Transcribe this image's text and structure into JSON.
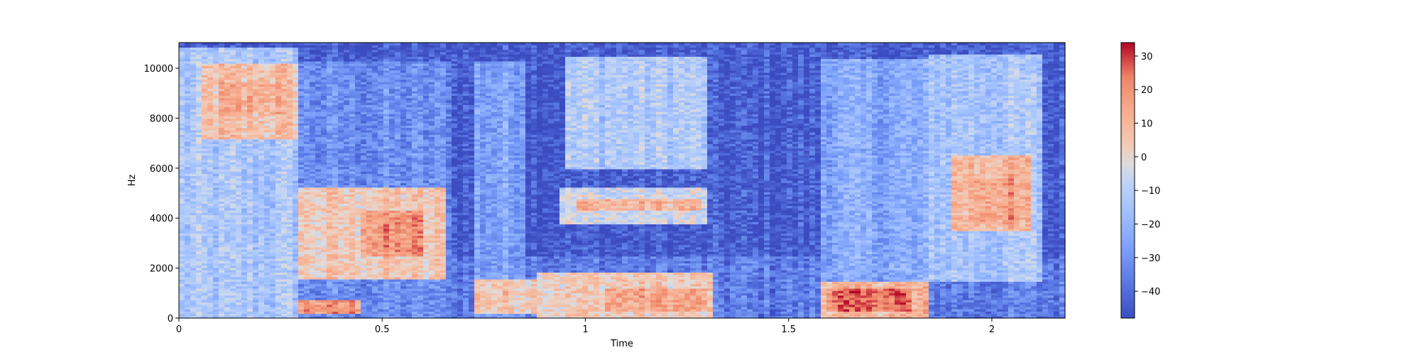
{
  "chart_data": {
    "type": "heatmap",
    "subtype": "spectrogram",
    "title": "",
    "xlabel": "Time",
    "ylabel": "Hz",
    "xlim": [
      0,
      2.18
    ],
    "ylim": [
      0,
      11025
    ],
    "x_ticks": [
      0,
      0.5,
      1,
      1.5,
      2
    ],
    "x_tick_labels": [
      "0",
      "0.5",
      "1",
      "1.5",
      "2"
    ],
    "y_ticks": [
      0,
      2000,
      4000,
      6000,
      8000,
      10000
    ],
    "y_tick_labels": [
      "0",
      "2000",
      "4000",
      "6000",
      "8000",
      "10000"
    ],
    "colormap": "coolwarm",
    "colorbar": {
      "vmin": -48,
      "vmax": 34,
      "ticks": [
        -40,
        -30,
        -20,
        -10,
        0,
        10,
        20,
        30
      ],
      "tick_labels": [
        "−40",
        "−30",
        "−20",
        "−10",
        "0",
        "10",
        "20",
        "30"
      ]
    },
    "background_level_db": -44,
    "regions": [
      {
        "x": [
          0.0,
          0.3
        ],
        "y": [
          0,
          10800
        ],
        "level_db": -14
      },
      {
        "x": [
          0.05,
          0.3
        ],
        "y": [
          7200,
          10200
        ],
        "level_db": 6
      },
      {
        "x": [
          0.1,
          0.25
        ],
        "y": [
          8200,
          9500
        ],
        "level_db": 12
      },
      {
        "x": [
          0.3,
          0.67
        ],
        "y": [
          0,
          10300
        ],
        "level_db": -32
      },
      {
        "x": [
          0.3,
          0.65
        ],
        "y": [
          1600,
          5200
        ],
        "level_db": 4
      },
      {
        "x": [
          0.45,
          0.6
        ],
        "y": [
          2500,
          4300
        ],
        "level_db": 18
      },
      {
        "x": [
          0.3,
          0.45
        ],
        "y": [
          200,
          700
        ],
        "level_db": 18
      },
      {
        "x": [
          0.72,
          0.85
        ],
        "y": [
          0,
          10300
        ],
        "level_db": -26
      },
      {
        "x": [
          0.72,
          0.9
        ],
        "y": [
          200,
          1600
        ],
        "level_db": 6
      },
      {
        "x": [
          0.95,
          1.3
        ],
        "y": [
          6000,
          10500
        ],
        "level_db": -12
      },
      {
        "x": [
          0.93,
          1.3
        ],
        "y": [
          3800,
          5200
        ],
        "level_db": -6
      },
      {
        "x": [
          0.98,
          1.28
        ],
        "y": [
          4300,
          4800
        ],
        "level_db": 10
      },
      {
        "x": [
          0.88,
          1.32
        ],
        "y": [
          0,
          1800
        ],
        "level_db": 4
      },
      {
        "x": [
          1.05,
          1.3
        ],
        "y": [
          300,
          1200
        ],
        "level_db": 14
      },
      {
        "x": [
          1.58,
          1.85
        ],
        "y": [
          0,
          10400
        ],
        "level_db": -24
      },
      {
        "x": [
          1.58,
          1.85
        ],
        "y": [
          0,
          1500
        ],
        "level_db": 10
      },
      {
        "x": [
          1.6,
          1.8
        ],
        "y": [
          300,
          1200
        ],
        "level_db": 24
      },
      {
        "x": [
          1.85,
          2.12
        ],
        "y": [
          1500,
          10600
        ],
        "level_db": -14
      },
      {
        "x": [
          1.9,
          2.1
        ],
        "y": [
          3500,
          6500
        ],
        "level_db": 10
      },
      {
        "x": [
          1.95,
          2.05
        ],
        "y": [
          3800,
          5600
        ],
        "level_db": 16
      }
    ]
  }
}
